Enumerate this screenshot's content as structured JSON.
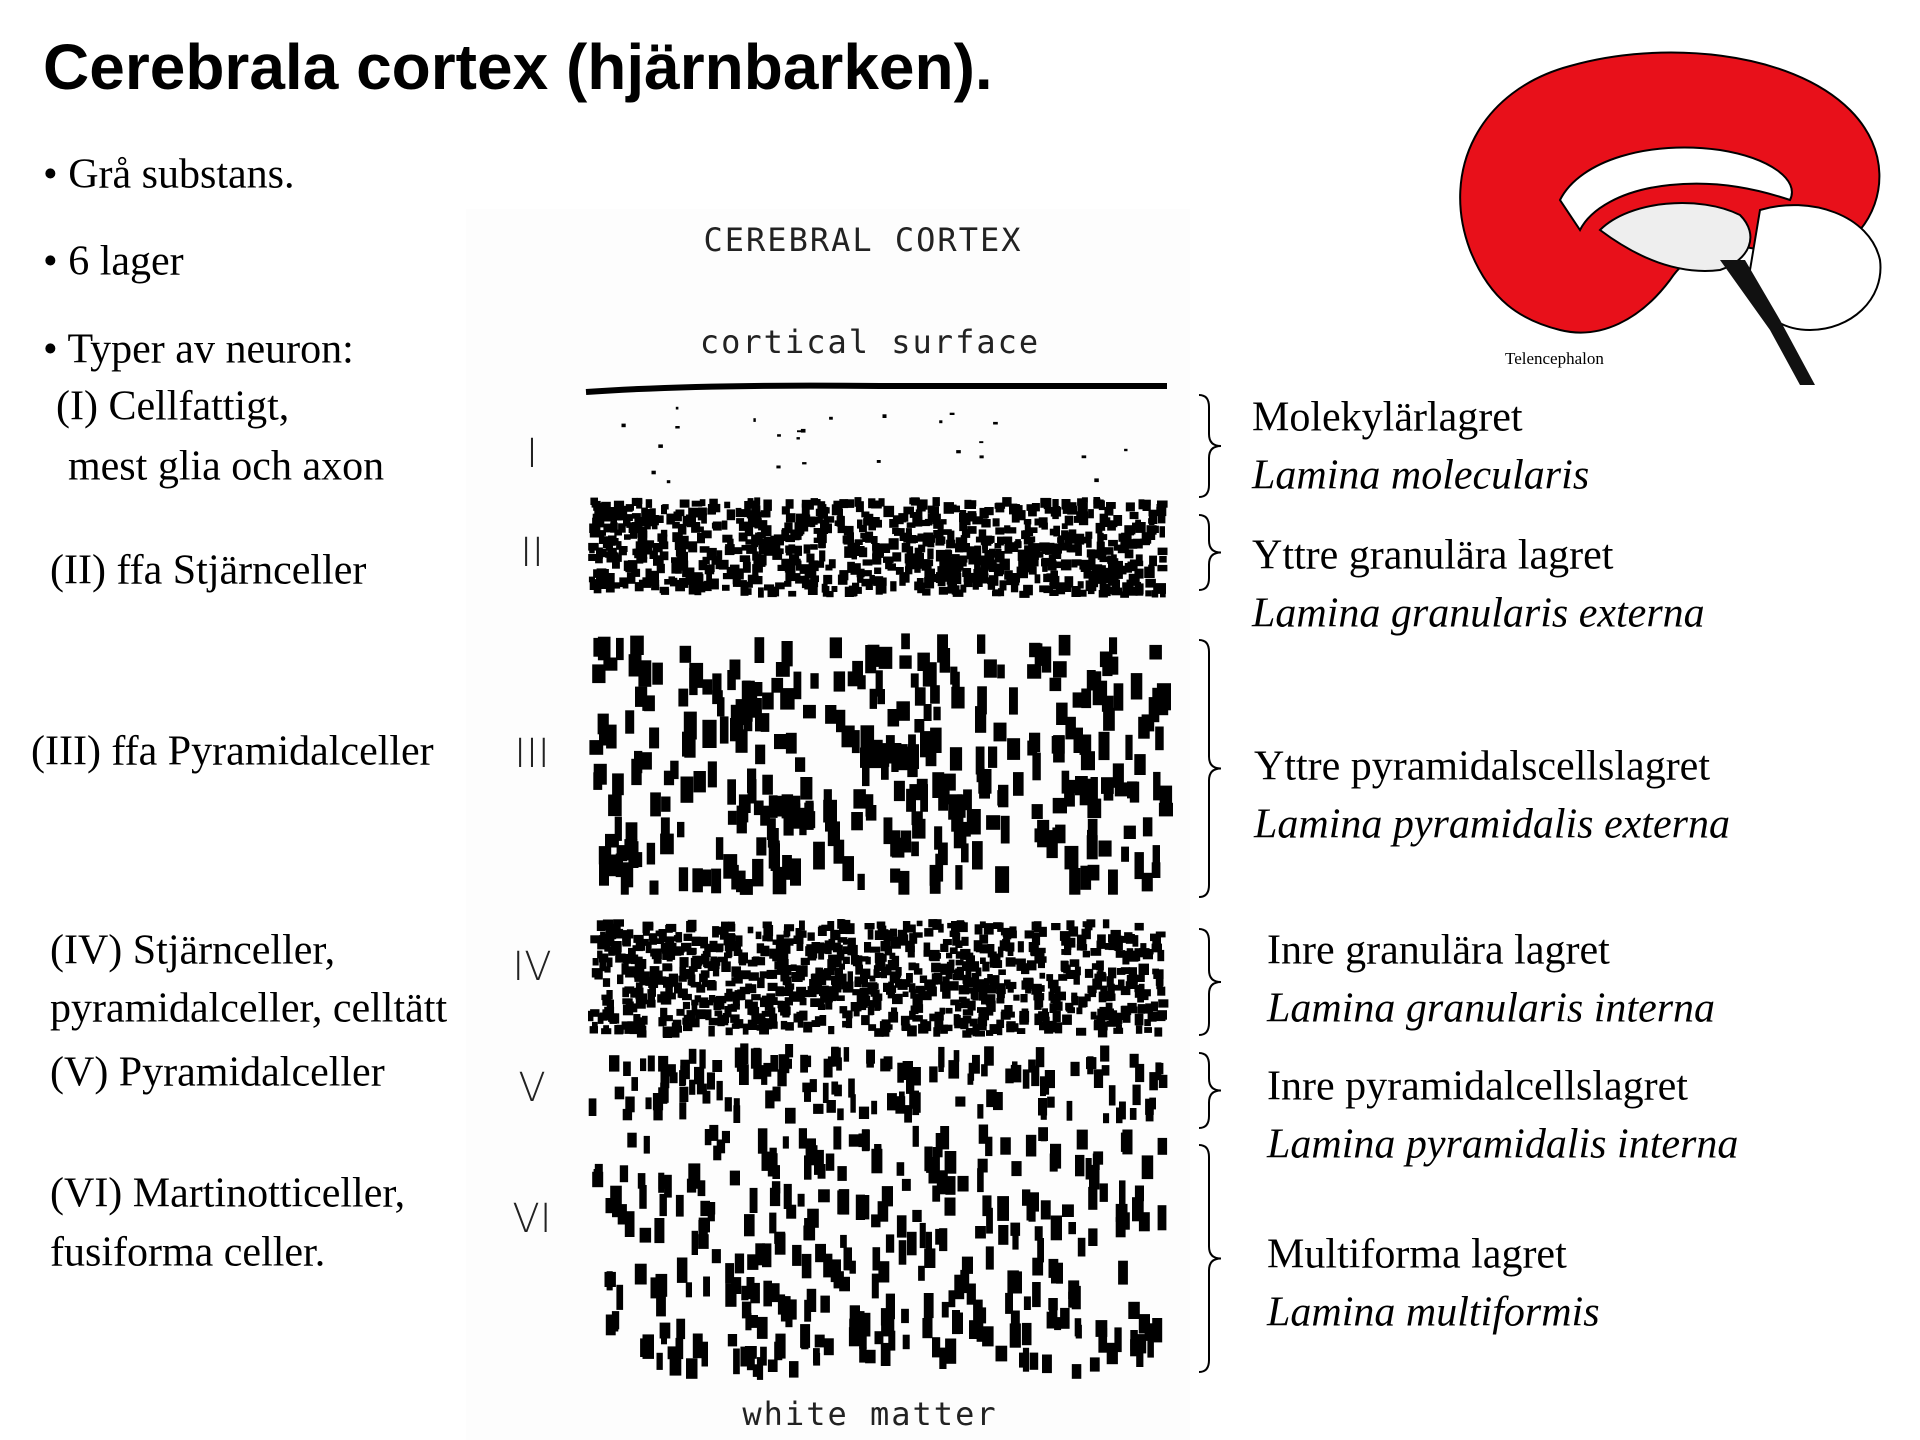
{
  "title": "Cerebrala cortex (hjärnbarken).",
  "bullets": [
    "• Grå substans.",
    "• 6 lager",
    "• Typer av neuron:"
  ],
  "neuron_types": [
    [
      "(I) Cellfattigt,",
      "mest glia och axon"
    ],
    [
      "(II) ffa Stjärnceller"
    ],
    [
      "(III) ffa Pyramidalceller"
    ],
    [
      "(IV) Stjärnceller,",
      "pyramidalceller, celltätt"
    ],
    [
      "(V) Pyramidalceller"
    ],
    [
      "(VI) Martinotticeller,",
      "fusiforma celler."
    ]
  ],
  "diagram": {
    "title": "CEREBRAL CORTEX",
    "top": "cortical surface",
    "bottom": "white matter",
    "numerals": [
      "I",
      "II",
      "III",
      "IV",
      "V",
      "VI"
    ]
  },
  "layers": [
    {
      "name": "Molekylärlagret",
      "latin": "Lamina molecularis"
    },
    {
      "name": "Yttre granulära lagret",
      "latin": "Lamina granularis externa"
    },
    {
      "name": "Yttre pyramidalscellslagret",
      "latin": "Lamina pyramidalis externa"
    },
    {
      "name": "Inre granulära lagret",
      "latin": "Lamina granularis interna"
    },
    {
      "name": "Inre pyramidalcellslagret",
      "latin": "Lamina pyramidalis interna"
    },
    {
      "name": "Multiforma lagret",
      "latin": "Lamina multiformis"
    }
  ],
  "brain": {
    "caption": "Telencephalon"
  }
}
